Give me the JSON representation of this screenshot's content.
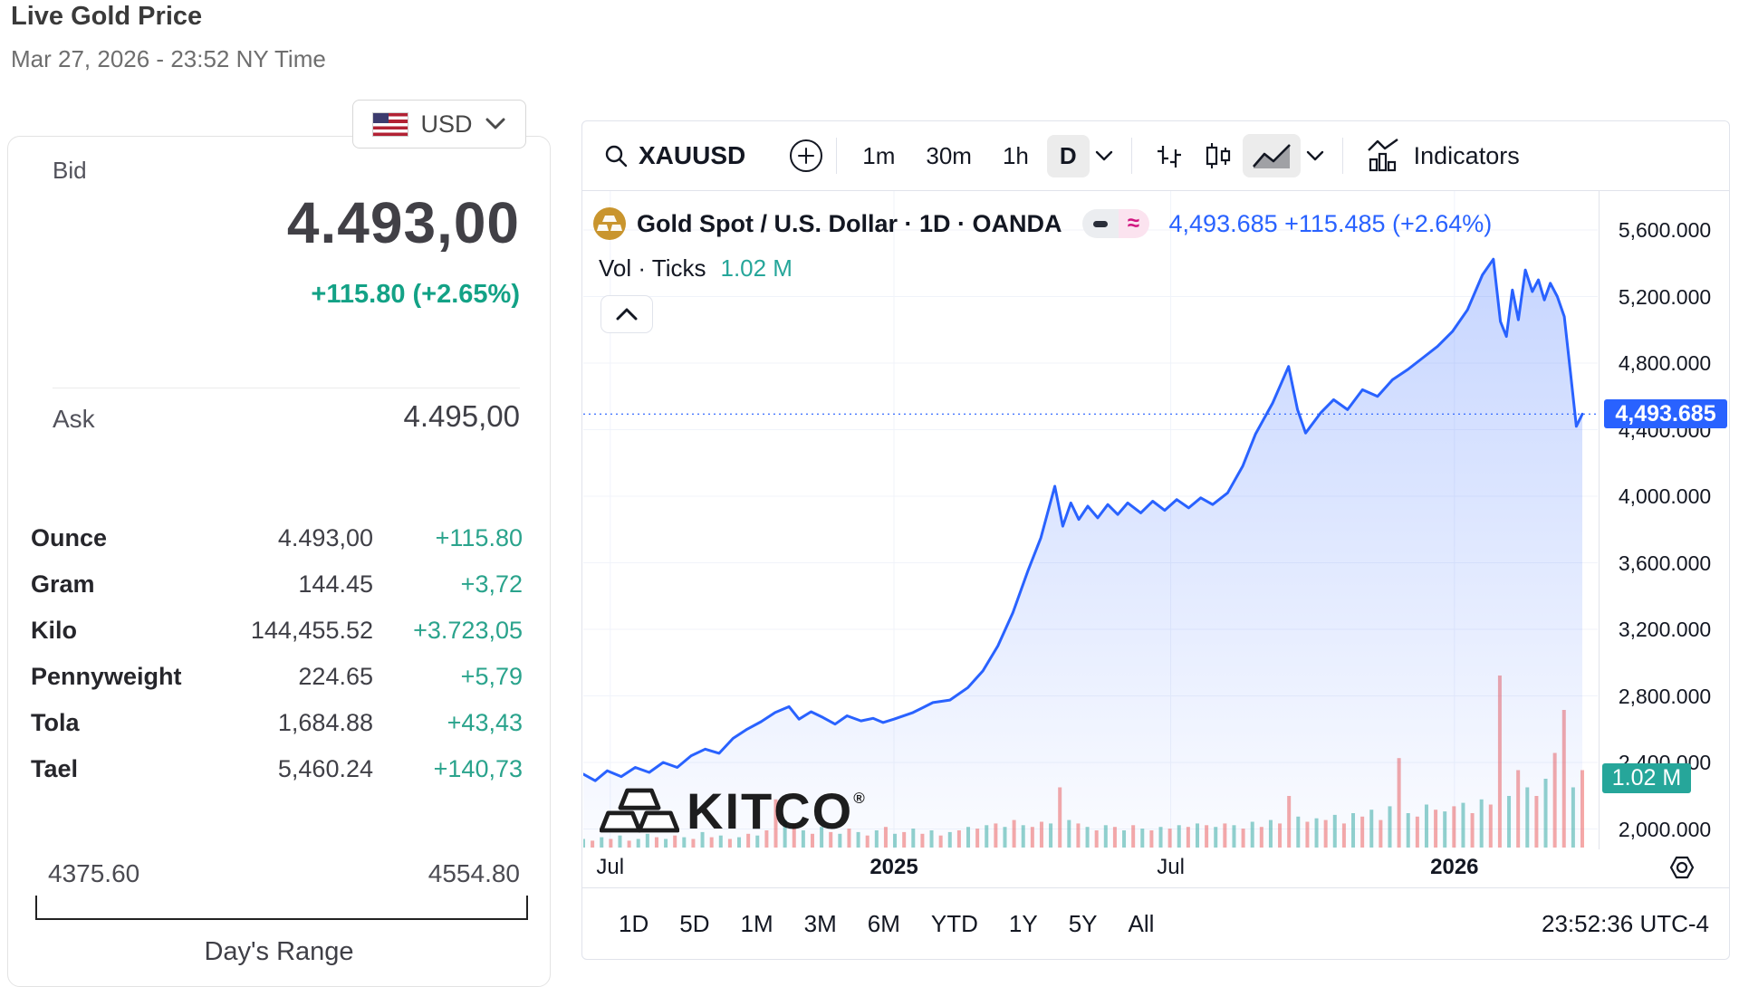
{
  "header": {
    "title": "Live Gold Price",
    "datetime": "Mar 27, 2026 - 23:52 NY Time"
  },
  "currency_selector": {
    "currency": "USD",
    "flag": "us-flag"
  },
  "quote": {
    "bid_label": "Bid",
    "bid": "4.493,00",
    "change": "+115.80 (+2.65%)",
    "ask_label": "Ask",
    "ask": "4.495,00"
  },
  "units_table": {
    "rows": [
      {
        "label": "Ounce",
        "value": "4.493,00",
        "change": "+115.80"
      },
      {
        "label": "Gram",
        "value": "144.45",
        "change": "+3,72"
      },
      {
        "label": "Kilo",
        "value": "144,455.52",
        "change": "+3.723,05"
      },
      {
        "label": "Pennyweight",
        "value": "224.65",
        "change": "+5,79"
      },
      {
        "label": "Tola",
        "value": "1,684.88",
        "change": "+43,43"
      },
      {
        "label": "Tael",
        "value": "5,460.24",
        "change": "+140,73"
      }
    ]
  },
  "days_range": {
    "low": "4375.60",
    "high": "4554.80",
    "label": "Day's Range"
  },
  "chart": {
    "toolbar": {
      "symbol": "XAUUSD",
      "intervals": [
        "1m",
        "30m",
        "1h",
        "D"
      ],
      "active_interval": "D",
      "indicators_label": "Indicators"
    },
    "legend": {
      "title": "Gold Spot / U.S. Dollar · 1D · OANDA",
      "price_line": "4,493.685 +115.485 (+2.64%)",
      "approx_symbol": "≈",
      "volume_label": "Vol · Ticks",
      "volume_value": "1.02 M"
    },
    "price_badge": "4,493.685",
    "volume_badge": "1.02 M",
    "watermark": "KITCO",
    "bottom": {
      "ranges": [
        "1D",
        "5D",
        "1M",
        "3M",
        "6M",
        "YTD",
        "1Y",
        "5Y",
        "All"
      ],
      "clock": "23:52:36 UTC-4"
    }
  },
  "chart_data": {
    "type": "area",
    "title": "Gold Spot / U.S. Dollar · 1D · OANDA",
    "last_price": 4493.685,
    "ylim": [
      1900,
      5700
    ],
    "grid": true,
    "colors": {
      "line": "#2962ff",
      "area_top": "rgba(41,98,255,0.28)",
      "area_bottom": "rgba(41,98,255,0.02)",
      "vol_up": "rgba(38,166,154,0.5)",
      "vol_down": "rgba(239,83,80,0.5)",
      "grid": "#f0f3fa",
      "badge_price": "#2962ff",
      "badge_volume": "#26a69a"
    },
    "y_ticks": [
      {
        "v": 5600,
        "label": "5,600.000"
      },
      {
        "v": 5200,
        "label": "5,200.000"
      },
      {
        "v": 4800,
        "label": "4,800.000"
      },
      {
        "v": 4400,
        "label": "4,400.000"
      },
      {
        "v": 4000,
        "label": "4,000.000"
      },
      {
        "v": 3600,
        "label": "3,600.000"
      },
      {
        "v": 3200,
        "label": "3,200.000"
      },
      {
        "v": 2800,
        "label": "2,800.000"
      },
      {
        "v": 2400,
        "label": "2,400.000"
      },
      {
        "v": 2000,
        "label": "2,000.000"
      }
    ],
    "x_ticks": [
      {
        "t": 0.027,
        "label": "Jul",
        "bold": false
      },
      {
        "t": 0.311,
        "label": "2025",
        "bold": true
      },
      {
        "t": 0.588,
        "label": "Jul",
        "bold": false
      },
      {
        "t": 0.872,
        "label": "2026",
        "bold": true
      }
    ],
    "series": [
      {
        "name": "Gold Spot / U.S. Dollar close",
        "points": [
          [
            0.0,
            2330
          ],
          [
            0.012,
            2290
          ],
          [
            0.024,
            2350
          ],
          [
            0.038,
            2315
          ],
          [
            0.052,
            2370
          ],
          [
            0.066,
            2340
          ],
          [
            0.08,
            2400
          ],
          [
            0.094,
            2370
          ],
          [
            0.108,
            2440
          ],
          [
            0.122,
            2480
          ],
          [
            0.136,
            2455
          ],
          [
            0.15,
            2545
          ],
          [
            0.164,
            2600
          ],
          [
            0.178,
            2645
          ],
          [
            0.192,
            2700
          ],
          [
            0.206,
            2735
          ],
          [
            0.216,
            2660
          ],
          [
            0.228,
            2705
          ],
          [
            0.24,
            2670
          ],
          [
            0.252,
            2630
          ],
          [
            0.264,
            2680
          ],
          [
            0.278,
            2650
          ],
          [
            0.29,
            2665
          ],
          [
            0.3,
            2640
          ],
          [
            0.311,
            2660
          ],
          [
            0.33,
            2700
          ],
          [
            0.35,
            2760
          ],
          [
            0.367,
            2775
          ],
          [
            0.385,
            2850
          ],
          [
            0.4,
            2950
          ],
          [
            0.415,
            3100
          ],
          [
            0.43,
            3300
          ],
          [
            0.445,
            3550
          ],
          [
            0.458,
            3750
          ],
          [
            0.472,
            4060
          ],
          [
            0.48,
            3820
          ],
          [
            0.488,
            3960
          ],
          [
            0.496,
            3860
          ],
          [
            0.505,
            3940
          ],
          [
            0.515,
            3870
          ],
          [
            0.525,
            3950
          ],
          [
            0.535,
            3890
          ],
          [
            0.545,
            3960
          ],
          [
            0.558,
            3900
          ],
          [
            0.57,
            3970
          ],
          [
            0.582,
            3915
          ],
          [
            0.594,
            3980
          ],
          [
            0.606,
            3930
          ],
          [
            0.618,
            3990
          ],
          [
            0.63,
            3950
          ],
          [
            0.645,
            4020
          ],
          [
            0.66,
            4180
          ],
          [
            0.673,
            4375
          ],
          [
            0.69,
            4560
          ],
          [
            0.706,
            4780
          ],
          [
            0.715,
            4520
          ],
          [
            0.723,
            4380
          ],
          [
            0.738,
            4500
          ],
          [
            0.751,
            4580
          ],
          [
            0.765,
            4520
          ],
          [
            0.78,
            4640
          ],
          [
            0.795,
            4600
          ],
          [
            0.81,
            4700
          ],
          [
            0.825,
            4760
          ],
          [
            0.84,
            4830
          ],
          [
            0.855,
            4900
          ],
          [
            0.87,
            4990
          ],
          [
            0.885,
            5120
          ],
          [
            0.9,
            5330
          ],
          [
            0.911,
            5425
          ],
          [
            0.918,
            5050
          ],
          [
            0.924,
            4960
          ],
          [
            0.93,
            5240
          ],
          [
            0.936,
            5060
          ],
          [
            0.943,
            5360
          ],
          [
            0.95,
            5230
          ],
          [
            0.956,
            5300
          ],
          [
            0.962,
            5180
          ],
          [
            0.968,
            5280
          ],
          [
            0.975,
            5200
          ],
          [
            0.982,
            5080
          ],
          [
            0.988,
            4750
          ],
          [
            0.994,
            4420
          ],
          [
            1.0,
            4493.685
          ]
        ]
      }
    ],
    "volume": {
      "name": "Vol · Ticks",
      "last": "1.02 M",
      "bars": [
        0.05,
        -0.04,
        0.06,
        -0.05,
        0.07,
        -0.04,
        0.05,
        0.08,
        -0.06,
        0.05,
        -0.07,
        0.06,
        -0.05,
        0.09,
        -0.06,
        0.07,
        -0.05,
        0.06,
        -0.08,
        0.07,
        -0.1,
        -0.28,
        0.16,
        -0.14,
        0.1,
        -0.08,
        0.12,
        -0.09,
        0.08,
        -0.11,
        0.09,
        -0.07,
        0.1,
        -0.12,
        0.08,
        -0.09,
        0.11,
        -0.08,
        0.1,
        -0.07,
        0.09,
        -0.1,
        0.12,
        -0.11,
        0.13,
        -0.14,
        0.12,
        -0.16,
        0.13,
        -0.12,
        -0.15,
        0.14,
        -0.35,
        0.16,
        -0.14,
        0.12,
        -0.1,
        0.13,
        -0.12,
        0.1,
        -0.13,
        0.11,
        -0.1,
        0.12,
        -0.11,
        0.13,
        -0.12,
        0.14,
        -0.13,
        0.12,
        -0.14,
        0.13,
        -0.11,
        0.15,
        -0.12,
        0.16,
        -0.14,
        -0.3,
        0.18,
        -0.15,
        0.17,
        -0.16,
        0.19,
        -0.14,
        0.2,
        -0.18,
        0.22,
        -0.16,
        0.24,
        -0.52,
        0.2,
        -0.18,
        0.25,
        -0.22,
        0.21,
        -0.24,
        0.26,
        -0.2,
        0.28,
        -0.25,
        -1.0,
        0.3,
        -0.45,
        0.35,
        -0.3,
        0.4,
        -0.55,
        -0.8,
        0.35,
        -0.45
      ]
    }
  }
}
